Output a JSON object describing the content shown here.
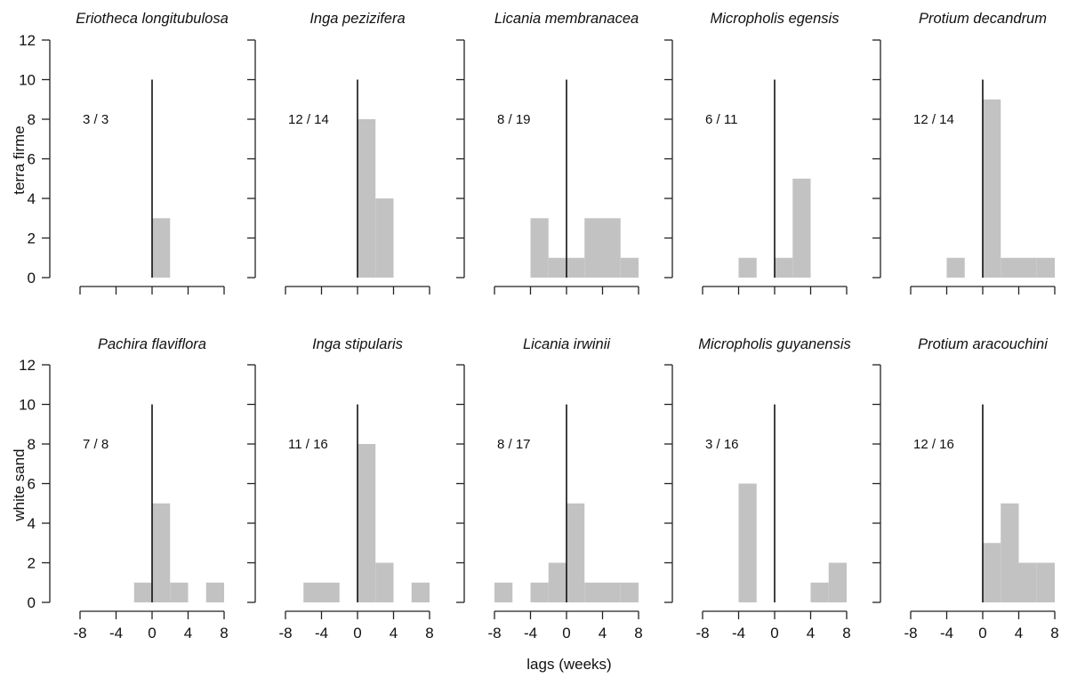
{
  "xlabel": "lags (weeks)",
  "row_labels": [
    "terra firme",
    "white sand"
  ],
  "colors": {
    "bar": "#c2c2c2",
    "axis": "#222222",
    "text": "#111111"
  },
  "chart_data": [
    {
      "type": "bar",
      "title": "Eriotheca  longitubulosa",
      "habitat": "terra firme",
      "annotation": "3 / 3",
      "bins": [
        [
          0,
          2,
          3
        ]
      ],
      "xlim": [
        -8,
        8
      ],
      "ylim": [
        0,
        12
      ],
      "xticks": [
        -8,
        -4,
        0,
        4,
        8
      ],
      "yticks": [
        0,
        2,
        4,
        6,
        8,
        10,
        12
      ],
      "show_y_tick_labels": true
    },
    {
      "type": "bar",
      "title": "Inga pezizifera",
      "habitat": "terra firme",
      "annotation": "12 / 14",
      "bins": [
        [
          0,
          2,
          8
        ],
        [
          2,
          4,
          4
        ]
      ],
      "xlim": [
        -8,
        8
      ],
      "ylim": [
        0,
        12
      ],
      "xticks": [
        -8,
        -4,
        0,
        4,
        8
      ],
      "yticks": [
        0,
        2,
        4,
        6,
        8,
        10,
        12
      ],
      "show_y_tick_labels": false
    },
    {
      "type": "bar",
      "title": "Licania  membranacea",
      "habitat": "terra firme",
      "annotation": "8 / 19",
      "bins": [
        [
          -4,
          -2,
          3
        ],
        [
          -2,
          0,
          1
        ],
        [
          0,
          2,
          1
        ],
        [
          2,
          4,
          3
        ],
        [
          4,
          6,
          3
        ],
        [
          6,
          8,
          1
        ]
      ],
      "xlim": [
        -8,
        8
      ],
      "ylim": [
        0,
        12
      ],
      "xticks": [
        -8,
        -4,
        0,
        4,
        8
      ],
      "yticks": [
        0,
        2,
        4,
        6,
        8,
        10,
        12
      ],
      "show_y_tick_labels": false
    },
    {
      "type": "bar",
      "title": "Micropholis egensis",
      "habitat": "terra firme",
      "annotation": "6 / 11",
      "bins": [
        [
          -4,
          -2,
          1
        ],
        [
          0,
          2,
          1
        ],
        [
          2,
          4,
          5
        ]
      ],
      "xlim": [
        -8,
        8
      ],
      "ylim": [
        0,
        12
      ],
      "xticks": [
        -8,
        -4,
        0,
        4,
        8
      ],
      "yticks": [
        0,
        2,
        4,
        6,
        8,
        10,
        12
      ],
      "show_y_tick_labels": false
    },
    {
      "type": "bar",
      "title": "Protium decandrum",
      "habitat": "terra firme",
      "annotation": "12 / 14",
      "bins": [
        [
          -4,
          -2,
          1
        ],
        [
          0,
          2,
          9
        ],
        [
          2,
          4,
          1
        ],
        [
          4,
          6,
          1
        ],
        [
          6,
          8,
          1
        ]
      ],
      "xlim": [
        -8,
        8
      ],
      "ylim": [
        0,
        12
      ],
      "xticks": [
        -8,
        -4,
        0,
        4,
        8
      ],
      "yticks": [
        0,
        2,
        4,
        6,
        8,
        10,
        12
      ],
      "show_y_tick_labels": false
    },
    {
      "type": "bar",
      "title": "Pachira  flaviflora",
      "habitat": "white sand",
      "annotation": "7 / 8",
      "bins": [
        [
          -2,
          0,
          1
        ],
        [
          0,
          2,
          5
        ],
        [
          2,
          4,
          1
        ],
        [
          6,
          8,
          1
        ]
      ],
      "xlim": [
        -8,
        8
      ],
      "ylim": [
        0,
        12
      ],
      "xticks": [
        -8,
        -4,
        0,
        4,
        8
      ],
      "yticks": [
        0,
        2,
        4,
        6,
        8,
        10,
        12
      ],
      "show_y_tick_labels": true
    },
    {
      "type": "bar",
      "title": "Inga stipularis",
      "habitat": "white sand",
      "annotation": "11 / 16",
      "bins": [
        [
          -6,
          -4,
          1
        ],
        [
          -4,
          -2,
          1
        ],
        [
          0,
          2,
          8
        ],
        [
          2,
          4,
          2
        ],
        [
          6,
          8,
          1
        ]
      ],
      "xlim": [
        -8,
        8
      ],
      "ylim": [
        0,
        12
      ],
      "xticks": [
        -8,
        -4,
        0,
        4,
        8
      ],
      "yticks": [
        0,
        2,
        4,
        6,
        8,
        10,
        12
      ],
      "show_y_tick_labels": false
    },
    {
      "type": "bar",
      "title": "Licania irwinii",
      "habitat": "white sand",
      "annotation": "8 / 17",
      "bins": [
        [
          -8,
          -6,
          1
        ],
        [
          -4,
          -2,
          1
        ],
        [
          -2,
          0,
          2
        ],
        [
          0,
          2,
          5
        ],
        [
          2,
          4,
          1
        ],
        [
          4,
          6,
          1
        ],
        [
          6,
          8,
          1
        ]
      ],
      "xlim": [
        -8,
        8
      ],
      "ylim": [
        0,
        12
      ],
      "xticks": [
        -8,
        -4,
        0,
        4,
        8
      ],
      "yticks": [
        0,
        2,
        4,
        6,
        8,
        10,
        12
      ],
      "show_y_tick_labels": false
    },
    {
      "type": "bar",
      "title": "Micropholis guyanensis",
      "habitat": "white sand",
      "annotation": "3 / 16",
      "bins": [
        [
          -4,
          -2,
          6
        ],
        [
          4,
          6,
          1
        ],
        [
          6,
          8,
          2
        ]
      ],
      "xlim": [
        -8,
        8
      ],
      "ylim": [
        0,
        12
      ],
      "xticks": [
        -8,
        -4,
        0,
        4,
        8
      ],
      "yticks": [
        0,
        2,
        4,
        6,
        8,
        10,
        12
      ],
      "show_y_tick_labels": false
    },
    {
      "type": "bar",
      "title": "Protium aracouchini",
      "habitat": "white sand",
      "annotation": "12 / 16",
      "bins": [
        [
          0,
          2,
          3
        ],
        [
          2,
          4,
          5
        ],
        [
          4,
          6,
          2
        ],
        [
          6,
          8,
          2
        ]
      ],
      "xlim": [
        -8,
        8
      ],
      "ylim": [
        0,
        12
      ],
      "xticks": [
        -8,
        -4,
        0,
        4,
        8
      ],
      "yticks": [
        0,
        2,
        4,
        6,
        8,
        10,
        12
      ],
      "show_y_tick_labels": false
    }
  ]
}
